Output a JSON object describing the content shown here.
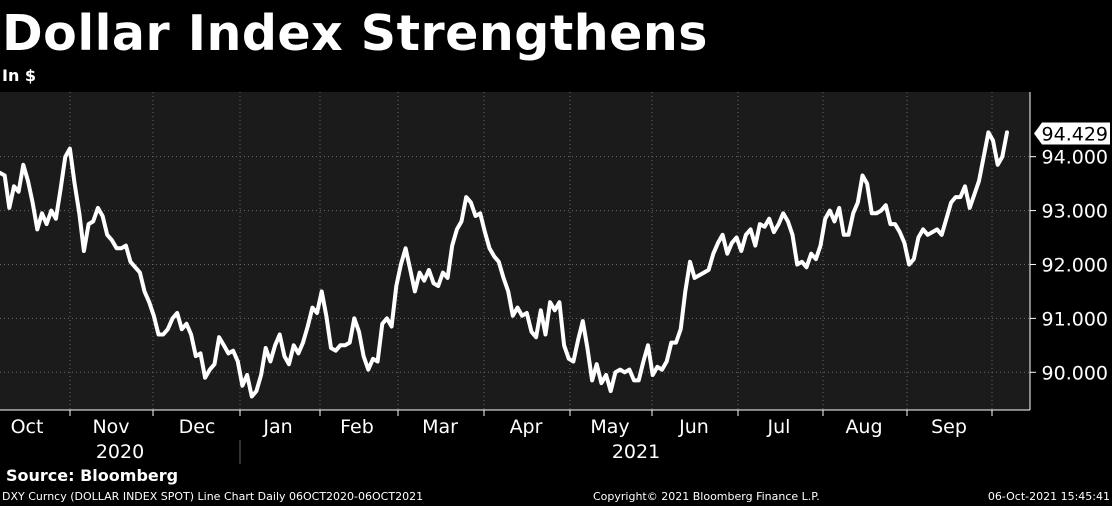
{
  "chart_data": {
    "type": "line",
    "title": "Dollar Index Strengthens",
    "subtitle": "In $",
    "series": [
      {
        "values": [
          [
            0,
            93.7
          ],
          [
            1,
            93.65
          ],
          [
            2,
            93.05
          ],
          [
            3,
            93.45
          ],
          [
            4,
            93.35
          ],
          [
            5,
            93.85
          ],
          [
            6,
            93.55
          ],
          [
            7,
            93.15
          ],
          [
            8,
            92.65
          ],
          [
            9,
            92.95
          ],
          [
            10,
            92.75
          ],
          [
            11,
            93.0
          ],
          [
            12,
            92.85
          ],
          [
            13,
            93.4
          ],
          [
            14,
            94.0
          ],
          [
            15,
            94.15
          ],
          [
            16,
            93.5
          ],
          [
            17,
            92.95
          ],
          [
            18,
            92.25
          ],
          [
            19,
            92.75
          ],
          [
            20,
            92.8
          ],
          [
            21,
            93.05
          ],
          [
            22,
            92.9
          ],
          [
            23,
            92.55
          ],
          [
            24,
            92.45
          ],
          [
            25,
            92.3
          ],
          [
            26,
            92.3
          ],
          [
            27,
            92.35
          ],
          [
            28,
            92.05
          ],
          [
            29,
            91.95
          ],
          [
            30,
            91.85
          ],
          [
            31,
            91.5
          ],
          [
            32,
            91.3
          ],
          [
            33,
            91.05
          ],
          [
            34,
            90.7
          ],
          [
            35,
            90.7
          ],
          [
            36,
            90.8
          ],
          [
            37,
            91.0
          ],
          [
            38,
            91.1
          ],
          [
            39,
            90.8
          ],
          [
            40,
            90.9
          ],
          [
            41,
            90.7
          ],
          [
            42,
            90.3
          ],
          [
            43,
            90.35
          ],
          [
            44,
            89.9
          ],
          [
            45,
            90.05
          ],
          [
            46,
            90.15
          ],
          [
            47,
            90.65
          ],
          [
            48,
            90.5
          ],
          [
            49,
            90.35
          ],
          [
            50,
            90.4
          ],
          [
            51,
            90.2
          ],
          [
            52,
            89.75
          ],
          [
            53,
            89.95
          ],
          [
            54,
            89.55
          ],
          [
            55,
            89.65
          ],
          [
            56,
            89.95
          ],
          [
            57,
            90.45
          ],
          [
            58,
            90.2
          ],
          [
            59,
            90.5
          ],
          [
            60,
            90.7
          ],
          [
            61,
            90.3
          ],
          [
            62,
            90.15
          ],
          [
            63,
            90.5
          ],
          [
            64,
            90.35
          ],
          [
            65,
            90.55
          ],
          [
            66,
            90.85
          ],
          [
            67,
            91.2
          ],
          [
            68,
            91.1
          ],
          [
            69,
            91.5
          ],
          [
            70,
            91.05
          ],
          [
            71,
            90.45
          ],
          [
            72,
            90.4
          ],
          [
            73,
            90.5
          ],
          [
            74,
            90.5
          ],
          [
            75,
            90.55
          ],
          [
            76,
            91.0
          ],
          [
            77,
            90.75
          ],
          [
            78,
            90.3
          ],
          [
            79,
            90.05
          ],
          [
            80,
            90.25
          ],
          [
            81,
            90.2
          ],
          [
            82,
            90.9
          ],
          [
            83,
            91.0
          ],
          [
            84,
            90.85
          ],
          [
            85,
            91.6
          ],
          [
            86,
            92.0
          ],
          [
            87,
            92.3
          ],
          [
            88,
            91.9
          ],
          [
            89,
            91.5
          ],
          [
            90,
            91.85
          ],
          [
            91,
            91.7
          ],
          [
            92,
            91.9
          ],
          [
            93,
            91.65
          ],
          [
            94,
            91.6
          ],
          [
            95,
            91.85
          ],
          [
            96,
            91.75
          ],
          [
            97,
            92.35
          ],
          [
            98,
            92.65
          ],
          [
            99,
            92.8
          ],
          [
            100,
            93.25
          ],
          [
            101,
            93.15
          ],
          [
            102,
            92.9
          ],
          [
            103,
            92.95
          ],
          [
            104,
            92.6
          ],
          [
            105,
            92.3
          ],
          [
            106,
            92.15
          ],
          [
            107,
            92.05
          ],
          [
            108,
            91.75
          ],
          [
            109,
            91.5
          ],
          [
            110,
            91.05
          ],
          [
            111,
            91.2
          ],
          [
            112,
            91.05
          ],
          [
            113,
            91.1
          ],
          [
            114,
            90.75
          ],
          [
            115,
            90.65
          ],
          [
            116,
            91.15
          ],
          [
            117,
            90.7
          ],
          [
            118,
            91.3
          ],
          [
            119,
            91.15
          ],
          [
            120,
            91.3
          ],
          [
            121,
            90.5
          ],
          [
            122,
            90.25
          ],
          [
            123,
            90.2
          ],
          [
            124,
            90.6
          ],
          [
            125,
            90.95
          ],
          [
            126,
            90.45
          ],
          [
            127,
            89.85
          ],
          [
            128,
            90.15
          ],
          [
            129,
            89.8
          ],
          [
            130,
            89.95
          ],
          [
            131,
            89.65
          ],
          [
            132,
            90.0
          ],
          [
            133,
            90.05
          ],
          [
            134,
            90.0
          ],
          [
            135,
            90.05
          ],
          [
            136,
            89.85
          ],
          [
            137,
            89.85
          ],
          [
            138,
            90.2
          ],
          [
            139,
            90.5
          ],
          [
            140,
            89.95
          ],
          [
            141,
            90.1
          ],
          [
            142,
            90.05
          ],
          [
            143,
            90.2
          ],
          [
            144,
            90.55
          ],
          [
            145,
            90.55
          ],
          [
            146,
            90.8
          ],
          [
            147,
            91.5
          ],
          [
            148,
            92.05
          ],
          [
            149,
            91.75
          ],
          [
            150,
            91.8
          ],
          [
            151,
            91.85
          ],
          [
            152,
            91.9
          ],
          [
            153,
            92.2
          ],
          [
            154,
            92.4
          ],
          [
            155,
            92.55
          ],
          [
            156,
            92.2
          ],
          [
            157,
            92.4
          ],
          [
            158,
            92.5
          ],
          [
            159,
            92.25
          ],
          [
            160,
            92.55
          ],
          [
            161,
            92.65
          ],
          [
            162,
            92.35
          ],
          [
            163,
            92.75
          ],
          [
            164,
            92.7
          ],
          [
            165,
            92.85
          ],
          [
            166,
            92.6
          ],
          [
            167,
            92.75
          ],
          [
            168,
            92.95
          ],
          [
            169,
            92.8
          ],
          [
            170,
            92.55
          ],
          [
            171,
            92.0
          ],
          [
            172,
            92.05
          ],
          [
            173,
            91.95
          ],
          [
            174,
            92.2
          ],
          [
            175,
            92.1
          ],
          [
            176,
            92.35
          ],
          [
            177,
            92.85
          ],
          [
            178,
            93.0
          ],
          [
            179,
            92.8
          ],
          [
            180,
            93.05
          ],
          [
            181,
            92.55
          ],
          [
            182,
            92.55
          ],
          [
            183,
            92.95
          ],
          [
            184,
            93.15
          ],
          [
            185,
            93.65
          ],
          [
            186,
            93.5
          ],
          [
            187,
            92.95
          ],
          [
            188,
            92.95
          ],
          [
            189,
            93.0
          ],
          [
            190,
            93.1
          ],
          [
            191,
            92.75
          ],
          [
            192,
            92.75
          ],
          [
            193,
            92.6
          ],
          [
            194,
            92.4
          ],
          [
            195,
            92.0
          ],
          [
            196,
            92.1
          ],
          [
            197,
            92.5
          ],
          [
            198,
            92.65
          ],
          [
            199,
            92.55
          ],
          [
            200,
            92.6
          ],
          [
            201,
            92.65
          ],
          [
            202,
            92.55
          ],
          [
            203,
            92.85
          ],
          [
            204,
            93.15
          ],
          [
            205,
            93.25
          ],
          [
            206,
            93.25
          ],
          [
            207,
            93.45
          ],
          [
            208,
            93.05
          ],
          [
            209,
            93.3
          ],
          [
            210,
            93.55
          ],
          [
            211,
            94.0
          ],
          [
            212,
            94.45
          ],
          [
            213,
            94.3
          ],
          [
            214,
            93.85
          ],
          [
            215,
            94.0
          ],
          [
            216,
            94.45
          ]
        ]
      }
    ],
    "y_ticks": [
      "90.000",
      "91.000",
      "92.000",
      "93.000",
      "94.000"
    ],
    "ylim": [
      89.3,
      95.2
    ],
    "last_value_label": "94.429",
    "x_month_labels": [
      "Oct",
      "Nov",
      "Dec",
      "Jan",
      "Feb",
      "Mar",
      "Apr",
      "May",
      "Jun",
      "Jul",
      "Aug",
      "Sep"
    ],
    "x_year_labels": [
      "2020",
      "2021"
    ],
    "grid": true
  },
  "source": "Source: Bloomberg",
  "footer": {
    "left": "DXY Curncy (DOLLAR INDEX SPOT) Line Chart  Daily 06OCT2020-06OCT2021",
    "center": "Copyright© 2021 Bloomberg Finance L.P.",
    "right": "06-Oct-2021 15:45:41"
  },
  "colors": {
    "background": "#000000",
    "plot_background": "#1b1b1b",
    "line": "#ffffff",
    "grid": "#6a6a6a"
  }
}
